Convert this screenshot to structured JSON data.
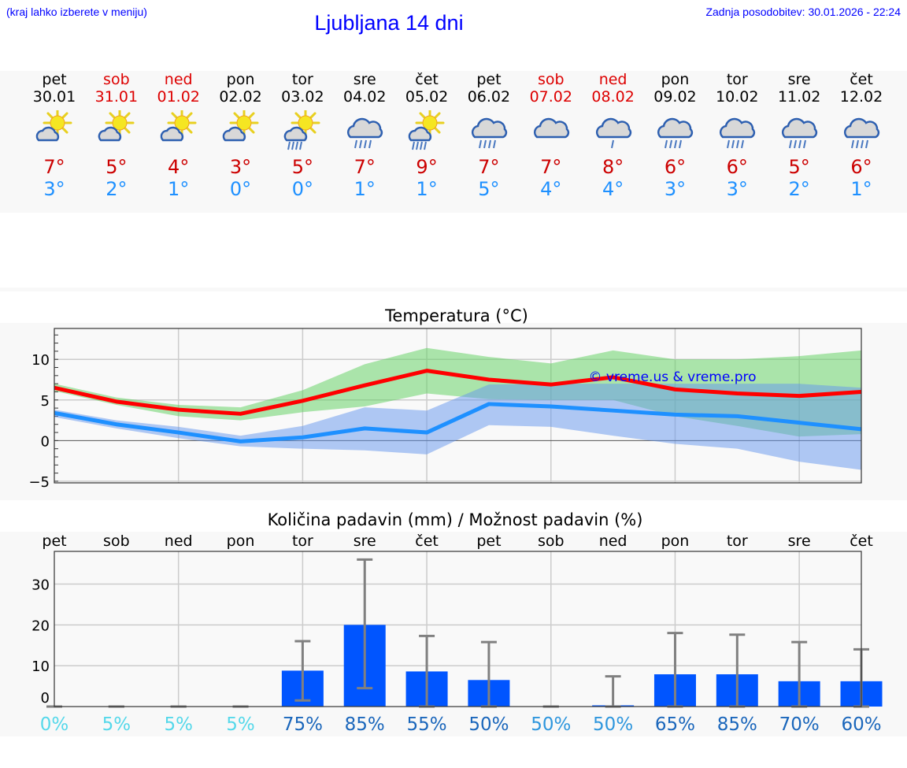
{
  "header": {
    "hint": "(kraj lahko izberete v meniju)",
    "title": "Ljubljana 14 dni",
    "updated": "Zadnja posodobitev: 30.01.2026 - 22:24"
  },
  "colors": {
    "weekend": "#dd0000",
    "weekday": "#000000",
    "max": "#cc0000",
    "min": "#1e90ff"
  },
  "days": [
    {
      "name": "pet",
      "date": "30.01",
      "weekend": false,
      "icon": "partly-sunny",
      "max": "7°",
      "min": "3°"
    },
    {
      "name": "sob",
      "date": "31.01",
      "weekend": true,
      "icon": "partly-sunny",
      "max": "5°",
      "min": "2°"
    },
    {
      "name": "ned",
      "date": "01.02",
      "weekend": true,
      "icon": "partly-sunny",
      "max": "4°",
      "min": "1°"
    },
    {
      "name": "pon",
      "date": "02.02",
      "weekend": false,
      "icon": "partly-sunny",
      "max": "3°",
      "min": "0°"
    },
    {
      "name": "tor",
      "date": "03.02",
      "weekend": false,
      "icon": "partly-sunny-rain",
      "max": "5°",
      "min": "0°"
    },
    {
      "name": "sre",
      "date": "04.02",
      "weekend": false,
      "icon": "rain",
      "max": "7°",
      "min": "1°"
    },
    {
      "name": "čet",
      "date": "05.02",
      "weekend": false,
      "icon": "partly-sunny-rain",
      "max": "9°",
      "min": "1°"
    },
    {
      "name": "pet",
      "date": "06.02",
      "weekend": false,
      "icon": "rain",
      "max": "7°",
      "min": "5°"
    },
    {
      "name": "sob",
      "date": "07.02",
      "weekend": true,
      "icon": "cloudy",
      "max": "7°",
      "min": "4°"
    },
    {
      "name": "ned",
      "date": "08.02",
      "weekend": true,
      "icon": "light-rain",
      "max": "8°",
      "min": "4°"
    },
    {
      "name": "pon",
      "date": "09.02",
      "weekend": false,
      "icon": "rain",
      "max": "6°",
      "min": "3°"
    },
    {
      "name": "tor",
      "date": "10.02",
      "weekend": false,
      "icon": "rain",
      "max": "6°",
      "min": "3°"
    },
    {
      "name": "sre",
      "date": "11.02",
      "weekend": false,
      "icon": "rain",
      "max": "5°",
      "min": "2°"
    },
    {
      "name": "čet",
      "date": "12.02",
      "weekend": false,
      "icon": "rain",
      "max": "6°",
      "min": "1°"
    }
  ],
  "chart_data": [
    {
      "type": "line",
      "title": "Temperatura (°C)",
      "watermark": "© vreme.us & vreme.pro",
      "x": [
        "pet",
        "sob",
        "ned",
        "pon",
        "tor",
        "sre",
        "čet",
        "pet",
        "sob",
        "ned",
        "pon",
        "tor",
        "sre",
        "čet"
      ],
      "ylim": [
        -5.2,
        13.8
      ],
      "yticks": [
        -5,
        0,
        5,
        10
      ],
      "ytick_labels": [
        "−5",
        "0",
        "5",
        "10"
      ],
      "grid": true,
      "series": [
        {
          "name": "max",
          "color": "#ff0000",
          "values": [
            6.5,
            4.8,
            3.8,
            3.3,
            4.9,
            6.8,
            8.6,
            7.5,
            6.9,
            7.8,
            6.3,
            5.8,
            5.5,
            6.0
          ]
        },
        {
          "name": "min",
          "color": "#1e90ff",
          "values": [
            3.4,
            2.0,
            1.0,
            -0.1,
            0.4,
            1.5,
            1.0,
            4.5,
            4.2,
            3.7,
            3.2,
            3.0,
            2.2,
            1.4
          ]
        }
      ],
      "bands": [
        {
          "name": "max-range",
          "color": "#5cd05c",
          "upper": [
            7.0,
            5.3,
            4.4,
            4.1,
            6.2,
            9.4,
            11.4,
            10.3,
            9.5,
            11.1,
            10.0,
            10.0,
            10.4,
            11.1
          ],
          "lower": [
            6.1,
            4.4,
            3.0,
            2.5,
            3.5,
            4.2,
            5.8,
            5.1,
            5.0,
            5.0,
            3.0,
            1.8,
            0.5,
            0.8
          ]
        },
        {
          "name": "min-range",
          "color": "#6495ed",
          "upper": [
            3.8,
            2.5,
            1.7,
            0.6,
            1.8,
            4.1,
            3.7,
            6.9,
            7.0,
            7.0,
            7.0,
            7.0,
            7.0,
            6.5
          ],
          "lower": [
            2.9,
            1.5,
            0.3,
            -0.7,
            -1.0,
            -1.2,
            -1.7,
            1.9,
            1.7,
            0.6,
            -0.4,
            -1.0,
            -2.6,
            -3.6
          ]
        }
      ]
    },
    {
      "type": "bar",
      "title": "Količina padavin (mm) / Možnost padavin (%)",
      "categories": [
        "pet",
        "sob",
        "ned",
        "pon",
        "tor",
        "sre",
        "čet",
        "pet",
        "sob",
        "ned",
        "pon",
        "tor",
        "sre",
        "čet"
      ],
      "values": [
        0,
        0,
        0,
        0,
        8.8,
        20.0,
        8.6,
        6.5,
        0,
        0.3,
        7.9,
        7.9,
        6.2,
        6.2
      ],
      "err_low": [
        0,
        0,
        0,
        0,
        1.5,
        4.5,
        0,
        0,
        0,
        0,
        0,
        0,
        0,
        0
      ],
      "err_high": [
        0,
        0,
        0,
        0,
        16.0,
        36.0,
        17.3,
        15.8,
        0,
        7.4,
        18.0,
        17.6,
        15.8,
        14.0
      ],
      "probability": [
        "0%",
        "5%",
        "5%",
        "5%",
        "75%",
        "85%",
        "55%",
        "50%",
        "50%",
        "50%",
        "65%",
        "85%",
        "70%",
        "60%"
      ],
      "probability_colors": [
        "#55d8ea",
        "#55d8ea",
        "#55d8ea",
        "#55d8ea",
        "#1a66bb",
        "#1a66bb",
        "#1a66bb",
        "#1a66bb",
        "#2e96dd",
        "#2e96dd",
        "#1a66bb",
        "#1a66bb",
        "#1a66bb",
        "#1a66bb"
      ],
      "ylim": [
        0,
        38
      ],
      "yticks": [
        0,
        10,
        20,
        30
      ],
      "bar_color": "#0055ff",
      "err_color": "#808080",
      "grid": true
    }
  ]
}
